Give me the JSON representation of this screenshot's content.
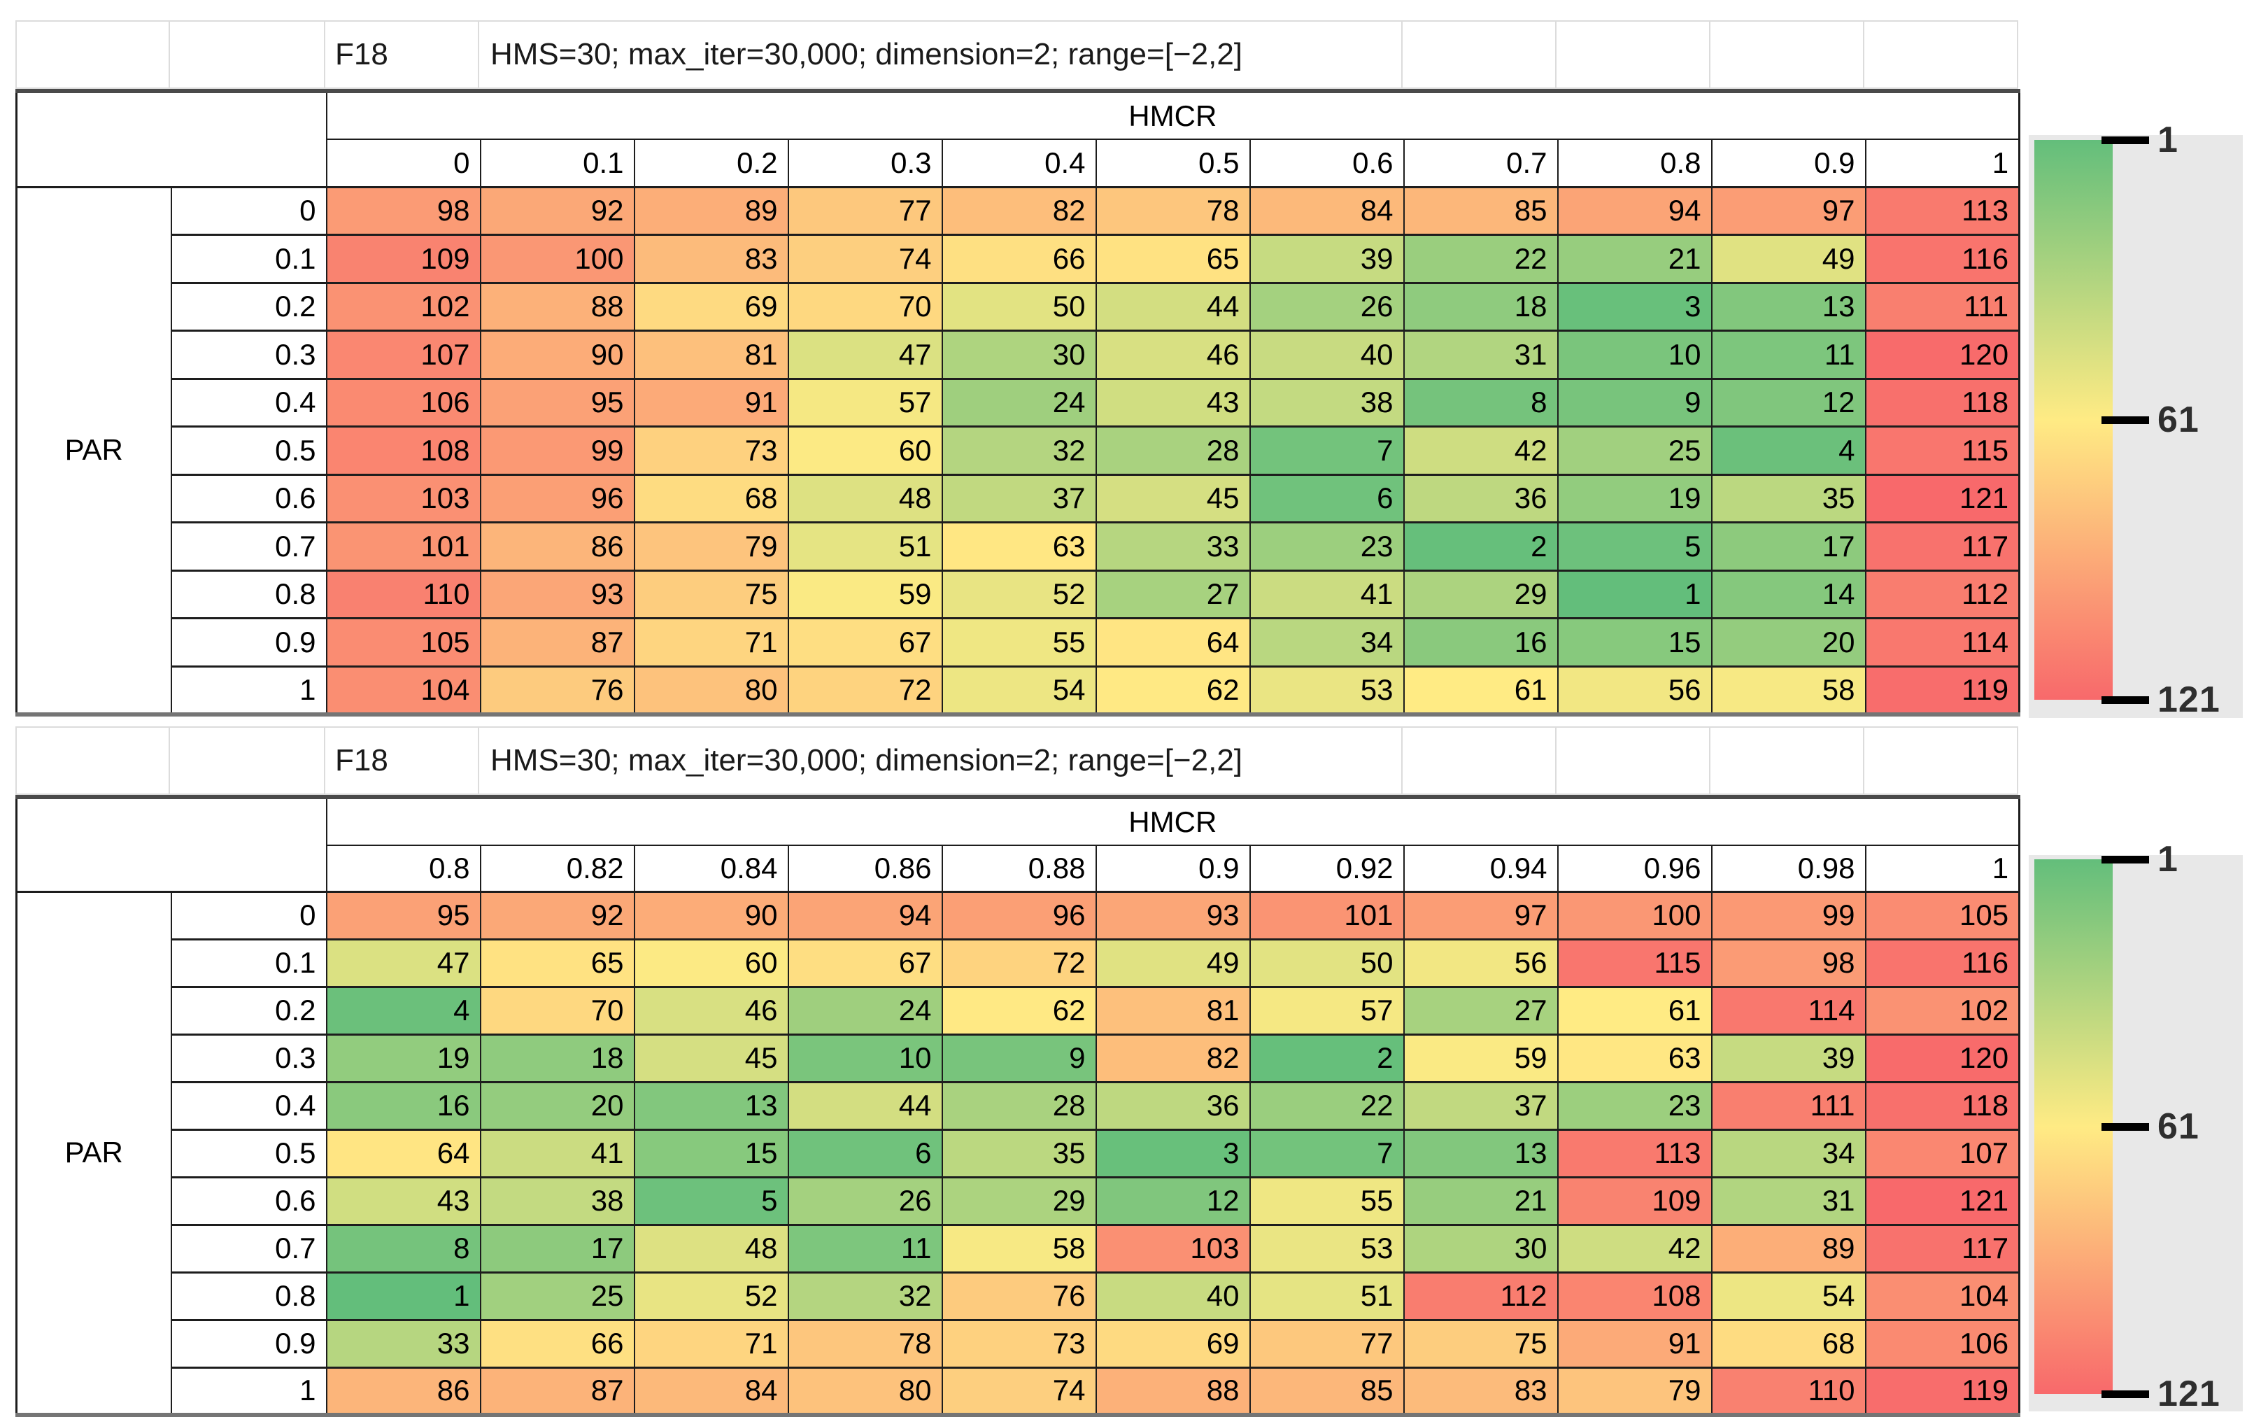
{
  "chart_data": [
    {
      "type": "heatmap",
      "title_code": "F18",
      "title": "HMS=30; max_iter=30,000; dimension=2; range=[−2,2]",
      "x_axis_label": "HMCR",
      "y_axis_label": "PAR",
      "x_ticks": [
        "0",
        "0.1",
        "0.2",
        "0.3",
        "0.4",
        "0.5",
        "0.6",
        "0.7",
        "0.8",
        "0.9",
        "1"
      ],
      "y_ticks": [
        "0",
        "0.1",
        "0.2",
        "0.3",
        "0.4",
        "0.5",
        "0.6",
        "0.7",
        "0.8",
        "0.9",
        "1"
      ],
      "values": [
        [
          98,
          92,
          89,
          77,
          82,
          78,
          84,
          85,
          94,
          97,
          113
        ],
        [
          109,
          100,
          83,
          74,
          66,
          65,
          39,
          22,
          21,
          49,
          116
        ],
        [
          102,
          88,
          69,
          70,
          50,
          44,
          26,
          18,
          3,
          13,
          111
        ],
        [
          107,
          90,
          81,
          47,
          30,
          46,
          40,
          31,
          10,
          11,
          120
        ],
        [
          106,
          95,
          91,
          57,
          24,
          43,
          38,
          8,
          9,
          12,
          118
        ],
        [
          108,
          99,
          73,
          60,
          32,
          28,
          7,
          42,
          25,
          4,
          115
        ],
        [
          103,
          96,
          68,
          48,
          37,
          45,
          6,
          36,
          19,
          35,
          121
        ],
        [
          101,
          86,
          79,
          51,
          63,
          33,
          23,
          2,
          5,
          17,
          117
        ],
        [
          110,
          93,
          75,
          59,
          52,
          27,
          41,
          29,
          1,
          14,
          112
        ],
        [
          105,
          87,
          71,
          67,
          55,
          64,
          34,
          16,
          15,
          20,
          114
        ],
        [
          104,
          76,
          80,
          72,
          54,
          62,
          53,
          61,
          56,
          58,
          119
        ]
      ],
      "colorscale": {
        "min": 1,
        "mid": 61,
        "max": 121,
        "min_color": "#63BE7B",
        "mid_color": "#FFEB84",
        "max_color": "#F8696B"
      },
      "legend_ticks": [
        "1",
        "61",
        "121"
      ],
      "legend_position": "right"
    },
    {
      "type": "heatmap",
      "title_code": "F18",
      "title": "HMS=30; max_iter=30,000; dimension=2; range=[−2,2]",
      "x_axis_label": "HMCR",
      "y_axis_label": "PAR",
      "x_ticks": [
        "0.8",
        "0.82",
        "0.84",
        "0.86",
        "0.88",
        "0.9",
        "0.92",
        "0.94",
        "0.96",
        "0.98",
        "1"
      ],
      "y_ticks": [
        "0",
        "0.1",
        "0.2",
        "0.3",
        "0.4",
        "0.5",
        "0.6",
        "0.7",
        "0.8",
        "0.9",
        "1"
      ],
      "values": [
        [
          95,
          92,
          90,
          94,
          96,
          93,
          101,
          97,
          100,
          99,
          105
        ],
        [
          47,
          65,
          60,
          67,
          72,
          49,
          50,
          56,
          115,
          98,
          116
        ],
        [
          4,
          70,
          46,
          24,
          62,
          81,
          57,
          27,
          61,
          114,
          102
        ],
        [
          19,
          18,
          45,
          10,
          9,
          82,
          2,
          59,
          63,
          39,
          120
        ],
        [
          16,
          20,
          13,
          44,
          28,
          36,
          22,
          37,
          23,
          111,
          118
        ],
        [
          64,
          41,
          15,
          6,
          35,
          3,
          7,
          13,
          113,
          34,
          107
        ],
        [
          43,
          38,
          5,
          26,
          29,
          12,
          55,
          21,
          109,
          31,
          121
        ],
        [
          8,
          17,
          48,
          11,
          58,
          103,
          53,
          30,
          42,
          89,
          117
        ],
        [
          1,
          25,
          52,
          32,
          76,
          40,
          51,
          112,
          108,
          54,
          104
        ],
        [
          33,
          66,
          71,
          78,
          73,
          69,
          77,
          75,
          91,
          68,
          106
        ],
        [
          86,
          87,
          84,
          80,
          74,
          88,
          85,
          83,
          79,
          110,
          119
        ]
      ],
      "colorscale": {
        "min": 1,
        "mid": 61,
        "max": 121,
        "min_color": "#63BE7B",
        "mid_color": "#FFEB84",
        "max_color": "#F8696B"
      },
      "legend_ticks": [
        "1",
        "61",
        "121"
      ],
      "legend_position": "right"
    }
  ]
}
